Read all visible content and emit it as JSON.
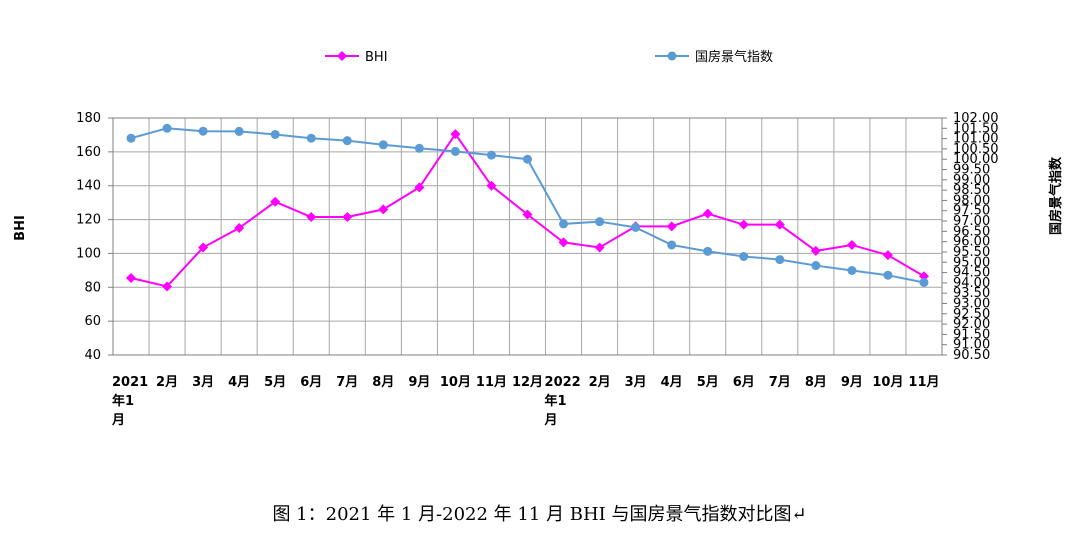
{
  "chart_data": {
    "type": "line",
    "categories": [
      "2021年1月",
      "2月",
      "3月",
      "4月",
      "5月",
      "6月",
      "7月",
      "8月",
      "9月",
      "10月",
      "11月",
      "12月",
      "2022年1月",
      "2月",
      "3月",
      "4月",
      "5月",
      "6月",
      "7月",
      "8月",
      "9月",
      "10月",
      "11月"
    ],
    "series": [
      {
        "name": "BHI",
        "axis": "left",
        "color": "#ff00ff",
        "marker": "diamond",
        "values": [
          85.5,
          80.5,
          103.5,
          115.0,
          130.5,
          121.5,
          121.5,
          126.0,
          139.0,
          170.5,
          140.0,
          123.0,
          106.5,
          103.5,
          116.0,
          116.0,
          123.5,
          117.0,
          117.0,
          101.5,
          105.0,
          99.0,
          86.5
        ]
      },
      {
        "name": "国房景气指数",
        "axis": "right",
        "color": "#5b9bd5",
        "marker": "circle",
        "values": [
          101.02,
          101.5,
          101.36,
          101.35,
          101.2,
          101.02,
          100.9,
          100.7,
          100.53,
          100.38,
          100.2,
          100.0,
          96.86,
          96.97,
          96.69,
          95.84,
          95.53,
          95.28,
          95.13,
          94.84,
          94.6,
          94.37,
          94.02
        ]
      }
    ],
    "y_left": {
      "min": 40,
      "max": 180,
      "ticks": [
        40,
        60,
        80,
        100,
        120,
        140,
        160,
        180
      ],
      "label": "BHI"
    },
    "y_right": {
      "min": 90.5,
      "max": 102.0,
      "ticks": [
        "90.50",
        "91.00",
        "91.50",
        "92.00",
        "92.50",
        "93.00",
        "93.50",
        "94.00",
        "94.50",
        "95.00",
        "95.50",
        "96.00",
        "96.50",
        "97.00",
        "97.50",
        "98.00",
        "98.50",
        "99.00",
        "99.50",
        "100.00",
        "100.50",
        "101.00",
        "101.50",
        "102.00"
      ],
      "label": "国房景气指数"
    },
    "legend_position": "top",
    "grid": true
  },
  "caption": "图 1：2021 年 1 月-2022 年 11 月 BHI 与国房景气指数对比图↵"
}
